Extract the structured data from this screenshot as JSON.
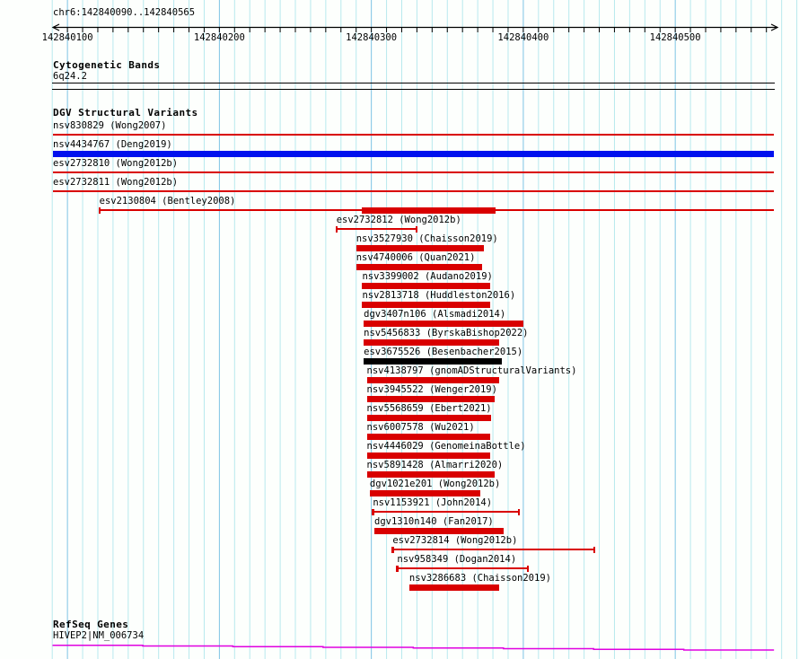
{
  "header": {
    "region_label": "chr6:142840090..142840565"
  },
  "ruler": {
    "start": 142840090,
    "end": 142840565,
    "major_step": 100,
    "minor_step": 10,
    "major_tick_labels": [
      "142840100",
      "142840200",
      "142840300",
      "142840400",
      "142840500"
    ]
  },
  "sections": {
    "cytobands": {
      "title": "Cytogenetic Bands",
      "bands": [
        {
          "name": "6q24.2",
          "start": 142840090,
          "end": 142840565
        }
      ]
    },
    "dgv": {
      "title": "DGV Structural Variants",
      "variants": [
        {
          "label": "nsv830829 (Wong2007)",
          "type": "hline",
          "start": 142840090,
          "end": 142840565,
          "color": "red"
        },
        {
          "label": "nsv4434767 (Deng2019)",
          "type": "fullbox",
          "start": 142840090,
          "end": 142840565,
          "color": "blue"
        },
        {
          "label": "esv2732810 (Wong2012b)",
          "type": "hline",
          "start": 142840090,
          "end": 142840565,
          "color": "red"
        },
        {
          "label": "esv2732811 (Wong2012b)",
          "type": "hline",
          "start": 142840090,
          "end": 142840565,
          "color": "red"
        },
        {
          "label": "esv2130804 (Bentley2008)",
          "type": "range_box",
          "start": 142840121,
          "end": 142840565,
          "box_start": 142840294,
          "box_end": 142840382,
          "tick_left": true,
          "tick_right": false,
          "color": "red"
        },
        {
          "label": "esv2732812 (Wong2012b)",
          "type": "range",
          "start": 142840277,
          "end": 142840330,
          "color": "red"
        },
        {
          "label": "nsv3527930 (Chaisson2019)",
          "type": "box",
          "start": 142840290,
          "end": 142840374,
          "color": "red"
        },
        {
          "label": "nsv4740006 (Quan2021)",
          "type": "box",
          "start": 142840290,
          "end": 142840373,
          "color": "red"
        },
        {
          "label": "nsv3399002 (Audano2019)",
          "type": "box",
          "start": 142840294,
          "end": 142840378,
          "color": "red"
        },
        {
          "label": "nsv2813718 (Huddleston2016)",
          "type": "box",
          "start": 142840294,
          "end": 142840378,
          "color": "red"
        },
        {
          "label": "dgv3407n106 (Alsmadi2014)",
          "type": "box",
          "start": 142840295,
          "end": 142840400,
          "color": "red"
        },
        {
          "label": "nsv5456833 (ByrskaBishop2022)",
          "type": "box",
          "start": 142840295,
          "end": 142840384,
          "color": "red"
        },
        {
          "label": "esv3675526 (Besenbacher2015)",
          "type": "box",
          "start": 142840295,
          "end": 142840386,
          "color": "black"
        },
        {
          "label": "nsv4138797 (gnomADStructuralVariants)",
          "type": "box",
          "start": 142840297,
          "end": 142840384,
          "color": "red"
        },
        {
          "label": "nsv3945522 (Wenger2019)",
          "type": "box",
          "start": 142840297,
          "end": 142840381,
          "color": "red"
        },
        {
          "label": "nsv5568659 (Ebert2021)",
          "type": "box",
          "start": 142840297,
          "end": 142840379,
          "color": "red"
        },
        {
          "label": "nsv6007578 (Wu2021)",
          "type": "box",
          "start": 142840297,
          "end": 142840378,
          "color": "red"
        },
        {
          "label": "nsv4446029 (GenomeinaBottle)",
          "type": "box",
          "start": 142840297,
          "end": 142840378,
          "color": "red"
        },
        {
          "label": "nsv5891428 (Almarri2020)",
          "type": "box",
          "start": 142840297,
          "end": 142840381,
          "color": "red"
        },
        {
          "label": "dgv1021e201 (Wong2012b)",
          "type": "box",
          "start": 142840299,
          "end": 142840372,
          "color": "red"
        },
        {
          "label": "nsv1153921 (John2014)",
          "type": "range",
          "start": 142840301,
          "end": 142840397,
          "color": "red"
        },
        {
          "label": "dgv1310n140 (Fan2017)",
          "type": "box",
          "start": 142840302,
          "end": 142840387,
          "color": "red"
        },
        {
          "label": "esv2732814 (Wong2012b)",
          "type": "range",
          "start": 142840314,
          "end": 142840447,
          "color": "red"
        },
        {
          "label": "nsv958349 (Dogan2014)",
          "type": "range",
          "start": 142840317,
          "end": 142840403,
          "color": "red"
        },
        {
          "label": "nsv3286683 (Chaisson2019)",
          "type": "box",
          "start": 142840325,
          "end": 142840384,
          "color": "red"
        }
      ]
    },
    "refseq": {
      "title": "RefSeq Genes",
      "genes": [
        {
          "name": "HIVEP2|NM_006734",
          "start": 142840090,
          "end": 142840565
        }
      ]
    }
  },
  "colors": {
    "variant_red": "#d90000",
    "variant_blue": "#0011ee",
    "variant_black": "#000000",
    "gene_magenta": "#e000e0",
    "grid_minor": "#b8e9ee",
    "grid_major": "#7ec4e4",
    "axis": "#000000",
    "background": "#fdfffd"
  }
}
